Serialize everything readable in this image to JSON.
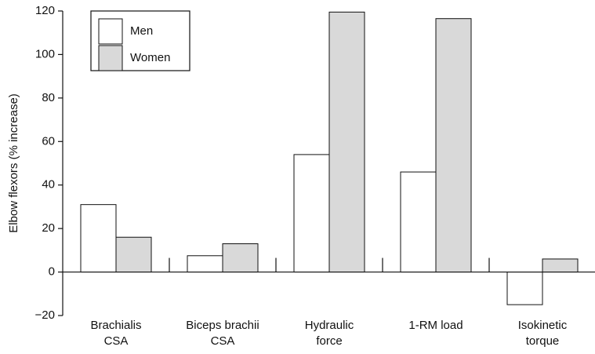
{
  "chart_data": {
    "type": "bar",
    "ylabel": "Elbow flexors (% increase)",
    "categories": [
      "Brachialis\nCSA",
      "Biceps brachii\nCSA",
      "Hydraulic\nforce",
      "1-RM load",
      "Isokinetic\ntorque"
    ],
    "series": [
      {
        "name": "Men",
        "color": "#ffffff",
        "values": [
          31,
          7.5,
          54,
          46,
          -15
        ]
      },
      {
        "name": "Women",
        "color": "#d9d9d9",
        "values": [
          16,
          13,
          119.5,
          116.5,
          6
        ]
      }
    ],
    "ylim": [
      -20,
      120
    ],
    "yticks": [
      {
        "value": -20,
        "label": "−20"
      },
      0,
      20,
      40,
      60,
      80,
      100,
      120
    ],
    "legend": "upper left"
  }
}
